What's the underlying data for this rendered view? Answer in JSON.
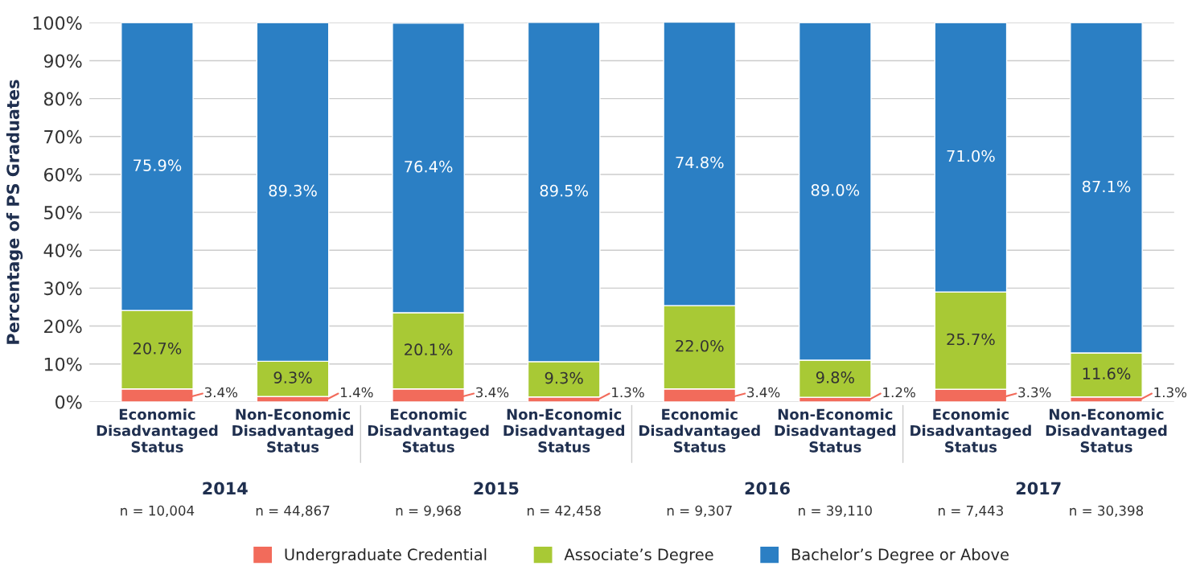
{
  "chart_data": {
    "type": "bar",
    "stacked": true,
    "ylabel": "Percentage of PS Graduates",
    "categories": [
      "Economic\nDisadvantaged\nStatus",
      "Non-Economic\nDisadvantaged\nStatus",
      "Economic\nDisadvantaged\nStatus",
      "Non-Economic\nDisadvantaged\nStatus",
      "Economic\nDisadvantaged\nStatus",
      "Non-Economic\nDisadvantaged\nStatus",
      "Economic\nDisadvantaged\nStatus",
      "Non-Economic\nDisadvantaged\nStatus"
    ],
    "series": [
      {
        "name": "Undergraduate Credential",
        "color": "#f26b5b",
        "values": [
          3.4,
          1.4,
          3.4,
          1.3,
          3.4,
          1.2,
          3.3,
          1.3
        ],
        "value_labels": [
          "3.4%",
          "1.4%",
          "3.4%",
          "1.3%",
          "3.4%",
          "1.2%",
          "3.3%",
          "1.3%"
        ]
      },
      {
        "name": "Associate’s Degree",
        "color": "#a8c935",
        "values": [
          20.7,
          9.3,
          20.1,
          9.3,
          22.0,
          9.8,
          25.7,
          11.6
        ],
        "value_labels": [
          "20.7%",
          "9.3%",
          "20.1%",
          "9.3%",
          "22.0%",
          "9.8%",
          "25.7%",
          "11.6%"
        ]
      },
      {
        "name": "Bachelor’s Degree or Above",
        "color": "#2b7fc4",
        "values": [
          75.9,
          89.3,
          76.4,
          89.5,
          74.8,
          89.0,
          71.0,
          87.1
        ],
        "value_labels": [
          "75.9%",
          "89.3%",
          "76.4%",
          "89.5%",
          "74.8%",
          "89.0%",
          "71.0%",
          "87.1%"
        ]
      }
    ],
    "ylim": [
      0,
      100
    ],
    "yticks": [
      {
        "value": 0,
        "label": "0%"
      },
      {
        "value": 10,
        "label": "10%"
      },
      {
        "value": 20,
        "label": "20%"
      },
      {
        "value": 30,
        "label": "30%"
      },
      {
        "value": 40,
        "label": "40%"
      },
      {
        "value": 50,
        "label": "50%"
      },
      {
        "value": 60,
        "label": "60%"
      },
      {
        "value": 70,
        "label": "70%"
      },
      {
        "value": 80,
        "label": "80%"
      },
      {
        "value": 90,
        "label": "90%"
      },
      {
        "value": 100,
        "label": "100%"
      }
    ],
    "grid": "y",
    "legend": "bottom",
    "annotations": [
      "2014",
      "2015",
      "2016",
      "2017",
      "n = 10,004",
      "n = 44,867",
      "n = 9,968",
      "n = 42,458",
      "n = 9,307",
      "n = 39,110",
      "n = 7,443",
      "n = 30,398"
    ]
  }
}
